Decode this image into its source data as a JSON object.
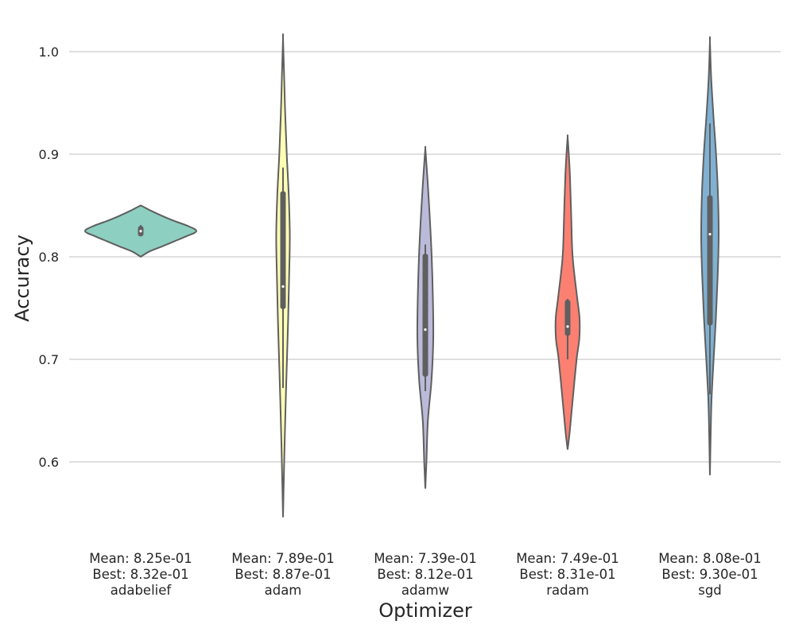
{
  "chart_data": {
    "type": "violin",
    "title": "",
    "xlabel": "Optimizer",
    "ylabel": "Accuracy",
    "ylim": [
      0.53,
      1.03
    ],
    "yticks": [
      "0.6",
      "0.7",
      "0.8",
      "0.9",
      "1.0"
    ],
    "grid": "horizontal",
    "colors": {
      "outline": "#5f5f5f",
      "grid": "#cccccc",
      "text": "#262626"
    },
    "series": [
      {
        "category": "adabelief",
        "color": "#8dcfc1",
        "mean_label": "Mean: 8.25e-01",
        "best_label": "Best: 8.32e-01",
        "mean": 0.825,
        "best": 0.832,
        "median": 0.825,
        "q1": 0.82,
        "q3": 0.83,
        "whisker_low": 0.82,
        "whisker_high": 0.831,
        "density": [
          [
            0.8,
            0.0
          ],
          [
            0.805,
            0.15
          ],
          [
            0.81,
            0.38
          ],
          [
            0.815,
            0.6
          ],
          [
            0.82,
            0.82
          ],
          [
            0.825,
            1.0
          ],
          [
            0.83,
            0.85
          ],
          [
            0.835,
            0.6
          ],
          [
            0.84,
            0.38
          ],
          [
            0.845,
            0.18
          ],
          [
            0.849,
            0.04
          ],
          [
            0.85,
            0.0
          ]
        ]
      },
      {
        "category": "adam",
        "color": "#fdfdb4",
        "mean_label": "Mean: 7.89e-01",
        "best_label": "Best: 8.87e-01",
        "mean": 0.789,
        "best": 0.887,
        "median": 0.771,
        "q1": 0.749,
        "q3": 0.864,
        "whisker_low": 0.672,
        "whisker_high": 0.887,
        "density": [
          [
            0.546,
            0.0
          ],
          [
            0.58,
            0.1
          ],
          [
            0.62,
            0.23
          ],
          [
            0.66,
            0.38
          ],
          [
            0.7,
            0.55
          ],
          [
            0.74,
            0.72
          ],
          [
            0.78,
            0.85
          ],
          [
            0.82,
            0.95
          ],
          [
            0.86,
            0.8
          ],
          [
            0.9,
            0.52
          ],
          [
            0.94,
            0.3
          ],
          [
            0.98,
            0.14
          ],
          [
            1.013,
            0.0
          ]
        ]
      },
      {
        "category": "adamw",
        "color": "#bcbad9",
        "mean_label": "Mean: 7.39e-01",
        "best_label": "Best: 8.12e-01",
        "mean": 0.739,
        "best": 0.812,
        "median": 0.729,
        "q1": 0.683,
        "q3": 0.803,
        "whisker_low": 0.669,
        "whisker_high": 0.812,
        "density": [
          [
            0.574,
            0.0
          ],
          [
            0.6,
            0.14
          ],
          [
            0.64,
            0.32
          ],
          [
            0.68,
            0.78
          ],
          [
            0.72,
            1.0
          ],
          [
            0.76,
            0.95
          ],
          [
            0.8,
            0.8
          ],
          [
            0.84,
            0.55
          ],
          [
            0.87,
            0.32
          ],
          [
            0.895,
            0.1
          ],
          [
            0.906,
            0.0
          ]
        ]
      },
      {
        "category": "radam",
        "color": "#fb8072",
        "mean_label": "Mean: 7.49e-01",
        "best_label": "Best: 8.31e-01",
        "mean": 0.749,
        "best": 0.831,
        "median": 0.732,
        "q1": 0.723,
        "q3": 0.758,
        "whisker_low": 0.7,
        "whisker_high": 0.759,
        "density": [
          [
            0.612,
            0.0
          ],
          [
            0.63,
            0.18
          ],
          [
            0.66,
            0.42
          ],
          [
            0.7,
            0.75
          ],
          [
            0.72,
            0.98
          ],
          [
            0.74,
            1.0
          ],
          [
            0.76,
            0.8
          ],
          [
            0.8,
            0.42
          ],
          [
            0.84,
            0.3
          ],
          [
            0.88,
            0.19
          ],
          [
            0.905,
            0.07
          ],
          [
            0.917,
            0.0
          ]
        ]
      },
      {
        "category": "sgd",
        "color": "#80b1d3",
        "mean_label": "Mean: 8.08e-01",
        "best_label": "Best: 9.30e-01",
        "mean": 0.808,
        "best": 0.93,
        "median": 0.822,
        "q1": 0.733,
        "q3": 0.86,
        "whisker_low": 0.666,
        "whisker_high": 0.93,
        "density": [
          [
            0.587,
            0.0
          ],
          [
            0.62,
            0.07
          ],
          [
            0.66,
            0.18
          ],
          [
            0.7,
            0.42
          ],
          [
            0.74,
            0.68
          ],
          [
            0.78,
            0.88
          ],
          [
            0.82,
            1.0
          ],
          [
            0.86,
            0.92
          ],
          [
            0.9,
            0.7
          ],
          [
            0.94,
            0.38
          ],
          [
            0.975,
            0.14
          ],
          [
            1.01,
            0.0
          ]
        ]
      }
    ]
  }
}
